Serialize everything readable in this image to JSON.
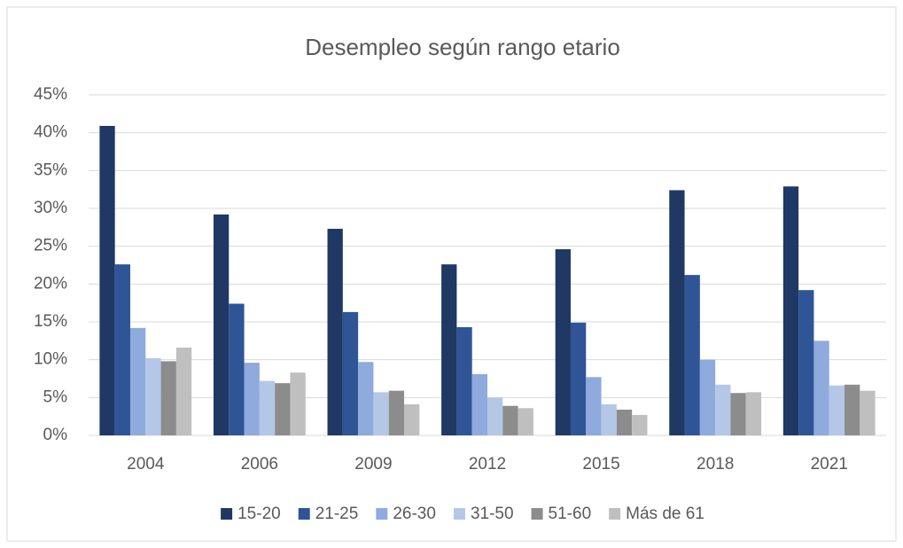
{
  "chart_data": {
    "type": "bar",
    "title": "Desempleo según rango etario",
    "categories": [
      "2004",
      "2006",
      "2009",
      "2012",
      "2015",
      "2018",
      "2021"
    ],
    "series": [
      {
        "name": "15-20",
        "color": "#1f3864",
        "values": [
          40.9,
          29.2,
          27.3,
          22.6,
          24.6,
          32.4,
          32.9
        ]
      },
      {
        "name": "21-25",
        "color": "#2f5597",
        "values": [
          22.6,
          17.4,
          16.3,
          14.3,
          14.9,
          21.2,
          19.2
        ]
      },
      {
        "name": "26-30",
        "color": "#8faadc",
        "values": [
          14.2,
          9.6,
          9.7,
          8.1,
          7.7,
          10.0,
          12.5
        ]
      },
      {
        "name": "31-50",
        "color": "#b4c7e7",
        "values": [
          10.2,
          7.2,
          5.7,
          5.0,
          4.1,
          6.7,
          6.6
        ]
      },
      {
        "name": "51-60",
        "color": "#8c8c8c",
        "values": [
          9.8,
          6.9,
          5.9,
          3.9,
          3.4,
          5.6,
          6.7
        ]
      },
      {
        "name": "Más de 61",
        "color": "#bfbfbf",
        "values": [
          11.6,
          8.3,
          4.1,
          3.6,
          2.7,
          5.7,
          5.9
        ]
      }
    ],
    "ylim": [
      0,
      45
    ],
    "yticks": [
      {
        "value": 0,
        "label": "0%"
      },
      {
        "value": 5,
        "label": "5%"
      },
      {
        "value": 10,
        "label": "10%"
      },
      {
        "value": 15,
        "label": "15%"
      },
      {
        "value": 20,
        "label": "20%"
      },
      {
        "value": 25,
        "label": "25%"
      },
      {
        "value": 30,
        "label": "30%"
      },
      {
        "value": 35,
        "label": "35%"
      },
      {
        "value": 40,
        "label": "40%"
      },
      {
        "value": 45,
        "label": "45%"
      }
    ],
    "grid": true,
    "legend": "bottom"
  }
}
